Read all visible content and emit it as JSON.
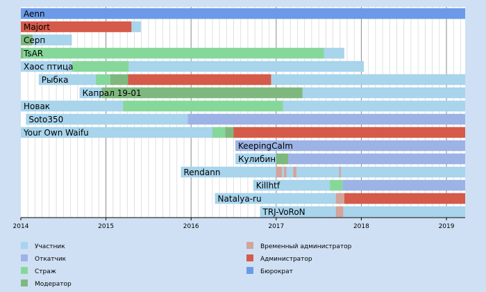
{
  "chart_data": {
    "type": "gantt",
    "x_axis": {
      "min": 2014.0,
      "max": 2019.22,
      "ticks": [
        "2014",
        "2015",
        "2016",
        "2017",
        "2018",
        "2019"
      ]
    },
    "role_colors": {
      "Участник": "#a8d4ec",
      "Откатчик": "#9db3e6",
      "Страж": "#86d89a",
      "Модератор": "#7fb87e",
      "Временный администратор": "#d2a49a",
      "Администратор": "#d65a4a",
      "Бюрократ": "#6b9be8"
    },
    "legend": [
      {
        "label": "Участник",
        "role": "Участник"
      },
      {
        "label": "Откатчик",
        "role": "Откатчик"
      },
      {
        "label": "Страж",
        "role": "Страж"
      },
      {
        "label": "Модератор",
        "role": "Модератор"
      },
      {
        "label": "Временный администратор",
        "role": "Временный администратор"
      },
      {
        "label": "Администратор",
        "role": "Администратор"
      },
      {
        "label": "Бюрократ",
        "role": "Бюрократ"
      }
    ],
    "users": [
      {
        "name": "Aenn",
        "segments": [
          {
            "role": "Бюрократ",
            "start": 2014.0,
            "end": 2019.22
          }
        ]
      },
      {
        "name": "Majort",
        "segments": [
          {
            "role": "Администратор",
            "start": 2014.0,
            "end": 2015.3
          },
          {
            "role": "Участник",
            "start": 2015.3,
            "end": 2015.41
          }
        ]
      },
      {
        "name": "Серп",
        "segments": [
          {
            "role": "Модератор",
            "start": 2014.0,
            "end": 2014.14
          },
          {
            "role": "Участник",
            "start": 2014.14,
            "end": 2014.6
          }
        ]
      },
      {
        "name": "TsAR",
        "segments": [
          {
            "role": "Модератор",
            "start": 2014.0,
            "end": 2014.03
          },
          {
            "role": "Страж",
            "start": 2014.03,
            "end": 2017.56
          },
          {
            "role": "Участник",
            "start": 2017.56,
            "end": 2017.8
          }
        ]
      },
      {
        "name": "Хаос птица",
        "segments": [
          {
            "role": "Участник",
            "start": 2014.0,
            "end": 2014.6
          },
          {
            "role": "Страж",
            "start": 2014.6,
            "end": 2015.27
          },
          {
            "role": "Участник",
            "start": 2015.27,
            "end": 2018.03
          }
        ]
      },
      {
        "name": "Рыбка",
        "segments": [
          {
            "role": "Участник",
            "start": 2014.21,
            "end": 2014.88
          },
          {
            "role": "Страж",
            "start": 2014.88,
            "end": 2015.05
          },
          {
            "role": "Модератор",
            "start": 2015.05,
            "end": 2015.26
          },
          {
            "role": "Администратор",
            "start": 2015.26,
            "end": 2016.94
          },
          {
            "role": "Участник",
            "start": 2016.94,
            "end": 2019.22
          }
        ]
      },
      {
        "name": "Капрал 19-01",
        "segments": [
          {
            "role": "Участник",
            "start": 2014.69,
            "end": 2014.95
          },
          {
            "role": "Модератор",
            "start": 2014.95,
            "end": 2017.31
          },
          {
            "role": "Участник",
            "start": 2017.31,
            "end": 2019.22
          }
        ]
      },
      {
        "name": "Новак",
        "segments": [
          {
            "role": "Участник",
            "start": 2014.0,
            "end": 2015.2
          },
          {
            "role": "Страж",
            "start": 2015.2,
            "end": 2017.08
          },
          {
            "role": "Участник",
            "start": 2017.08,
            "end": 2019.22
          }
        ]
      },
      {
        "name": "Soto350",
        "segments": [
          {
            "role": "Участник",
            "start": 2014.06,
            "end": 2015.96
          },
          {
            "role": "Откатчик",
            "start": 2015.96,
            "end": 2019.22
          }
        ]
      },
      {
        "name": "Your Own Waifu",
        "segments": [
          {
            "role": "Участник",
            "start": 2014.0,
            "end": 2016.25
          },
          {
            "role": "Страж",
            "start": 2016.25,
            "end": 2016.4
          },
          {
            "role": "Модератор",
            "start": 2016.4,
            "end": 2016.5
          },
          {
            "role": "Администратор",
            "start": 2016.5,
            "end": 2019.22
          }
        ]
      },
      {
        "name": "KeepingCalm",
        "segments": [
          {
            "role": "Откатчик",
            "start": 2016.52,
            "end": 2019.22
          }
        ]
      },
      {
        "name": "Кулибин",
        "segments": [
          {
            "role": "Участник",
            "start": 2016.52,
            "end": 2017.0
          },
          {
            "role": "Модератор",
            "start": 2017.0,
            "end": 2017.14
          },
          {
            "role": "Откатчик",
            "start": 2017.14,
            "end": 2019.22
          }
        ]
      },
      {
        "name": "Rendann",
        "segments": [
          {
            "role": "Участник",
            "start": 2015.88,
            "end": 2017.0
          },
          {
            "role": "Временный администратор",
            "start": 2017.0,
            "end": 2017.07
          },
          {
            "role": "Участник",
            "start": 2017.07,
            "end": 2017.09
          },
          {
            "role": "Временный администратор",
            "start": 2017.09,
            "end": 2017.12
          },
          {
            "role": "Участник",
            "start": 2017.12,
            "end": 2017.2
          },
          {
            "role": "Временный администратор",
            "start": 2017.2,
            "end": 2017.24
          },
          {
            "role": "Участник",
            "start": 2017.24,
            "end": 2017.74
          },
          {
            "role": "Временный администратор",
            "start": 2017.74,
            "end": 2017.76
          },
          {
            "role": "Участник",
            "start": 2017.76,
            "end": 2019.22
          }
        ]
      },
      {
        "name": "Killhtf",
        "segments": [
          {
            "role": "Участник",
            "start": 2016.73,
            "end": 2017.63
          },
          {
            "role": "Страж",
            "start": 2017.63,
            "end": 2017.78
          },
          {
            "role": "Откатчик",
            "start": 2017.78,
            "end": 2019.22
          }
        ]
      },
      {
        "name": "Natalya-ru",
        "segments": [
          {
            "role": "Участник",
            "start": 2016.28,
            "end": 2017.7
          },
          {
            "role": "Временный администратор",
            "start": 2017.7,
            "end": 2017.8
          },
          {
            "role": "Администратор",
            "start": 2017.8,
            "end": 2019.22
          }
        ]
      },
      {
        "name": "TRJ-VoRoN",
        "segments": [
          {
            "role": "Участник",
            "start": 2016.81,
            "end": 2017.7
          },
          {
            "role": "Временный администратор",
            "start": 2017.7,
            "end": 2017.79
          },
          {
            "role": "Участник",
            "start": 2017.79,
            "end": 2019.22
          }
        ]
      }
    ]
  }
}
